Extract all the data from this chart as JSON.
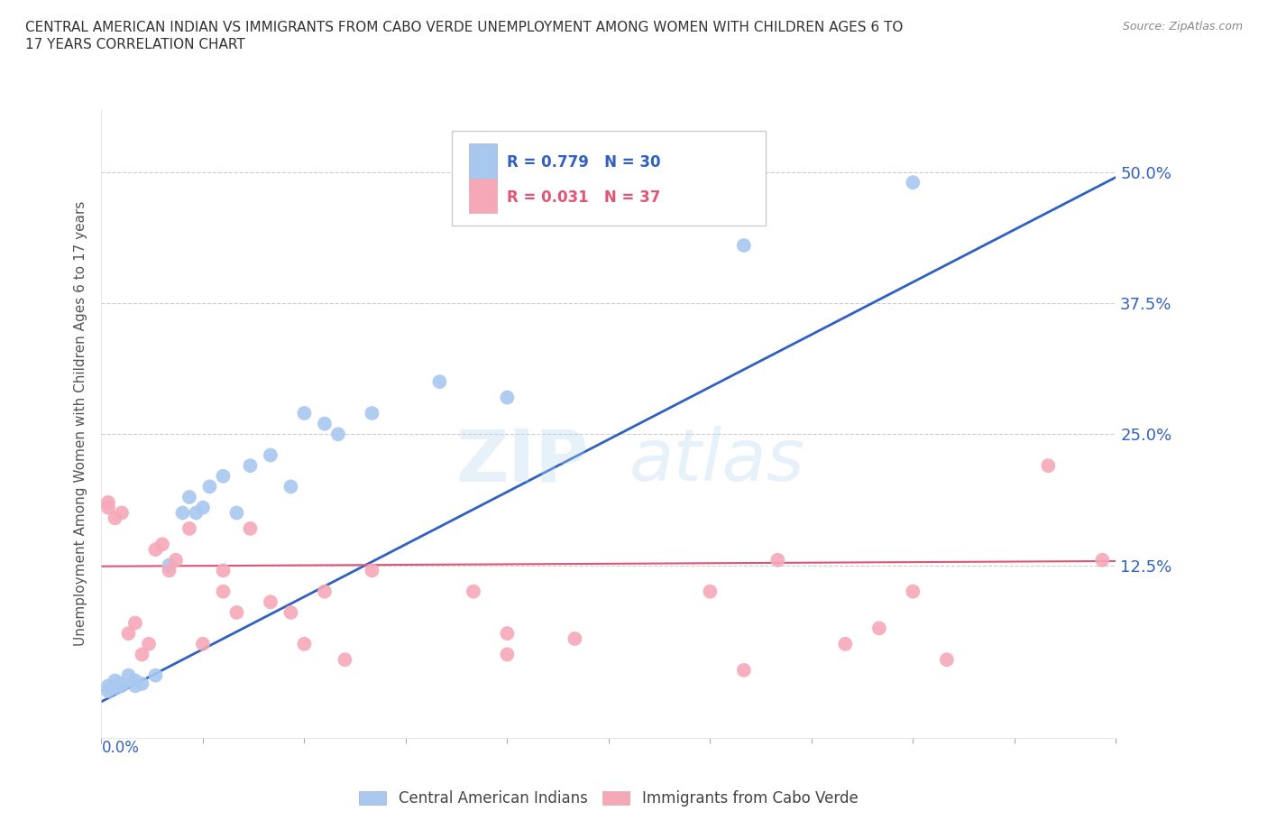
{
  "title_line1": "CENTRAL AMERICAN INDIAN VS IMMIGRANTS FROM CABO VERDE UNEMPLOYMENT AMONG WOMEN WITH CHILDREN AGES 6 TO",
  "title_line2": "17 YEARS CORRELATION CHART",
  "source": "Source: ZipAtlas.com",
  "ylabel": "Unemployment Among Women with Children Ages 6 to 17 years",
  "xmin": 0.0,
  "xmax": 0.15,
  "ymin": -0.04,
  "ymax": 0.56,
  "yticks": [
    0.0,
    0.125,
    0.25,
    0.375,
    0.5
  ],
  "ytick_labels": [
    "",
    "12.5%",
    "25.0%",
    "37.5%",
    "50.0%"
  ],
  "watermark": "ZIPatlas",
  "blue_color": "#A8C8F0",
  "pink_color": "#F5A8B8",
  "blue_line_color": "#3060C0",
  "pink_line_color": "#E05575",
  "blue_label": "Central American Indians",
  "pink_label": "Immigrants from Cabo Verde",
  "blue_r": 0.779,
  "blue_n": 30,
  "pink_r": 0.031,
  "pink_n": 37,
  "blue_x": [
    0.001,
    0.001,
    0.002,
    0.002,
    0.003,
    0.003,
    0.004,
    0.005,
    0.005,
    0.006,
    0.008,
    0.01,
    0.012,
    0.013,
    0.014,
    0.015,
    0.016,
    0.018,
    0.02,
    0.022,
    0.025,
    0.028,
    0.03,
    0.033,
    0.035,
    0.04,
    0.05,
    0.06,
    0.095,
    0.12
  ],
  "blue_y": [
    0.005,
    0.01,
    0.008,
    0.015,
    0.01,
    0.012,
    0.02,
    0.01,
    0.015,
    0.012,
    0.02,
    0.125,
    0.175,
    0.19,
    0.175,
    0.18,
    0.2,
    0.21,
    0.175,
    0.22,
    0.23,
    0.2,
    0.27,
    0.26,
    0.25,
    0.27,
    0.3,
    0.285,
    0.43,
    0.49
  ],
  "pink_x": [
    0.001,
    0.001,
    0.002,
    0.003,
    0.004,
    0.005,
    0.006,
    0.007,
    0.008,
    0.009,
    0.01,
    0.011,
    0.013,
    0.015,
    0.018,
    0.018,
    0.02,
    0.022,
    0.025,
    0.028,
    0.03,
    0.033,
    0.036,
    0.04,
    0.055,
    0.06,
    0.06,
    0.07,
    0.09,
    0.095,
    0.1,
    0.11,
    0.115,
    0.12,
    0.125,
    0.14,
    0.148
  ],
  "pink_y": [
    0.18,
    0.185,
    0.17,
    0.175,
    0.06,
    0.07,
    0.04,
    0.05,
    0.14,
    0.145,
    0.12,
    0.13,
    0.16,
    0.05,
    0.12,
    0.1,
    0.08,
    0.16,
    0.09,
    0.08,
    0.05,
    0.1,
    0.035,
    0.12,
    0.1,
    0.04,
    0.06,
    0.055,
    0.1,
    0.025,
    0.13,
    0.05,
    0.065,
    0.1,
    0.035,
    0.22,
    0.13
  ]
}
